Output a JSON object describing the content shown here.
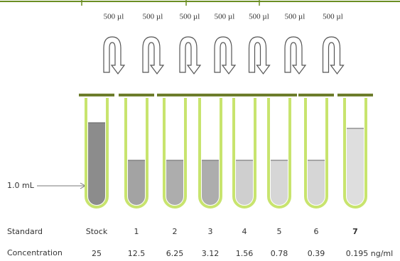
{
  "transfer_labels": [
    "500 µl",
    "500 µl",
    "500 µl",
    "500 µl",
    "500 µl",
    "500 µl",
    "500 µl"
  ],
  "volume_label": "1.0 mL",
  "rows": {
    "standard": {
      "label": "Standard",
      "items": [
        "Stock",
        "1",
        "2",
        "3",
        "4",
        "5",
        "6",
        "7"
      ]
    },
    "concentration": {
      "label": "Concentration",
      "items": [
        "25",
        "12.5",
        "6.25",
        "3.12",
        "1.56",
        "0.78",
        "0.39",
        "0.195 ng/ml"
      ]
    }
  }
}
